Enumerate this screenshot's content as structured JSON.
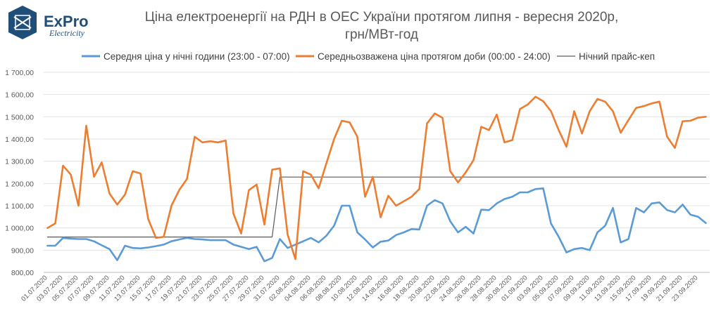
{
  "logo": {
    "name": "ExPro",
    "sub": "Electricity"
  },
  "chart_data": {
    "type": "line",
    "title_line1": "Ціна електроенергії на РДН в ОЕС України протягом липня - вересня 2020р,",
    "title_line2": "грн/МВт-год",
    "xlabel": "",
    "ylabel": "",
    "ylim": [
      800,
      1700
    ],
    "yticks": [
      "800,00",
      "900,00",
      "1 000,00",
      "1 100,00",
      "1 200,00",
      "1 300,00",
      "1 400,00",
      "1 500,00",
      "1 600,00",
      "1 700,00"
    ],
    "grid": true,
    "legend_position": "top",
    "x_tick_labels": [
      "01.07.2020",
      "03.07.2020",
      "05.07.2020",
      "07.07.2020",
      "09.07.2020",
      "11.07.2020",
      "13.07.2020",
      "15.07.2020",
      "17.07.2020",
      "19.07.2020",
      "21.07.2020",
      "23.07.2020",
      "25.07.2020",
      "27.07.2020",
      "29.07.2020",
      "31.07.2020",
      "02.08.2020",
      "04.08.2020",
      "06.08.2020",
      "08.08.2020",
      "10.08.2020",
      "12.08.2020",
      "14.08.2020",
      "16.08.2020",
      "18.08.2020",
      "20.08.2020",
      "22.08.2020",
      "24.08.2020",
      "26.08.2020",
      "28.08.2020",
      "30.08.2020",
      "01.09.2020",
      "03.09.2020",
      "05.09.2020",
      "07.09.2020",
      "09.09.2020",
      "11.09.2020",
      "13.09.2020",
      "15.09.2020",
      "17.09.2020",
      "19.09.2020",
      "21.09.2020",
      "23.09.2020"
    ],
    "series": [
      {
        "name": "Середня ціна у нічні години (23:00 - 07:00)",
        "color": "#5b9bd5",
        "values": [
          920,
          920,
          955,
          952,
          950,
          950,
          940,
          922,
          905,
          855,
          920,
          910,
          908,
          912,
          918,
          925,
          940,
          948,
          955,
          950,
          948,
          945,
          945,
          945,
          925,
          915,
          905,
          915,
          850,
          865,
          950,
          910,
          925,
          940,
          955,
          935,
          965,
          1010,
          1100,
          1100,
          980,
          948,
          912,
          938,
          943,
          968,
          980,
          995,
          993,
          1100,
          1125,
          1110,
          1030,
          980,
          1005,
          975,
          1082,
          1080,
          1110,
          1130,
          1140,
          1160,
          1160,
          1175,
          1178,
          1020,
          960,
          890,
          905,
          910,
          900,
          980,
          1010,
          1090,
          935,
          950,
          1090,
          1070,
          1110,
          1115,
          1080,
          1070,
          1105,
          1060,
          1050,
          1022
        ]
      },
      {
        "name": "Середньозважена ціна протягом доби (00:00 - 24:00)",
        "color": "#ed7d31",
        "values": [
          1000,
          1020,
          1280,
          1240,
          1100,
          1460,
          1230,
          1295,
          1155,
          1105,
          1150,
          1255,
          1245,
          1040,
          955,
          960,
          1100,
          1170,
          1220,
          1410,
          1385,
          1390,
          1385,
          1393,
          1065,
          975,
          1170,
          1195,
          1015,
          1262,
          1268,
          970,
          860,
          1255,
          1240,
          1178,
          1290,
          1400,
          1482,
          1475,
          1410,
          1140,
          1230,
          1048,
          1145,
          1100,
          1120,
          1140,
          1175,
          1470,
          1515,
          1495,
          1255,
          1205,
          1250,
          1305,
          1455,
          1440,
          1510,
          1385,
          1395,
          1535,
          1555,
          1590,
          1570,
          1525,
          1440,
          1365,
          1525,
          1425,
          1525,
          1580,
          1568,
          1525,
          1428,
          1485,
          1540,
          1548,
          1560,
          1568,
          1410,
          1360,
          1480,
          1482,
          1496,
          1500
        ]
      },
      {
        "name": "Нічний прайс-кеп",
        "color": "#595959",
        "values": [
          959,
          959,
          959,
          959,
          959,
          959,
          959,
          959,
          959,
          959,
          959,
          959,
          959,
          959,
          959,
          959,
          959,
          959,
          959,
          959,
          959,
          959,
          959,
          959,
          959,
          959,
          959,
          959,
          959,
          959,
          1229,
          1229,
          1229,
          1229,
          1229,
          1229,
          1229,
          1229,
          1229,
          1229,
          1229,
          1229,
          1229,
          1229,
          1229,
          1229,
          1229,
          1229,
          1229,
          1229,
          1229,
          1229,
          1229,
          1229,
          1229,
          1229,
          1229,
          1229,
          1229,
          1229,
          1229,
          1229,
          1229,
          1229,
          1229,
          1229,
          1229,
          1229,
          1229,
          1229,
          1229,
          1229,
          1229,
          1229,
          1229,
          1229,
          1229,
          1229,
          1229,
          1229,
          1229,
          1229,
          1229,
          1229,
          1229,
          1229
        ]
      }
    ]
  }
}
